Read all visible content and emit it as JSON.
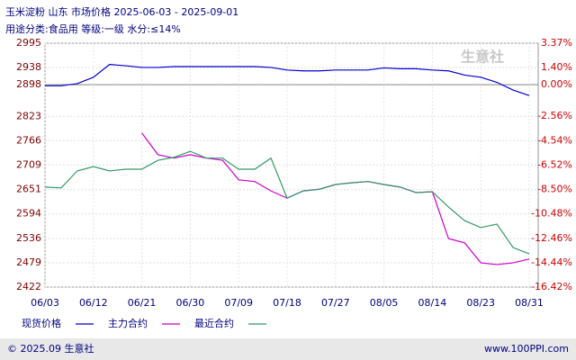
{
  "chart_data": {
    "type": "line",
    "title": "玉米淀粉  山东  市场价格  2025-06-03 - 2025-09-01",
    "subtitle": "用途分类:食品用  等级:一级  水分:≤14%",
    "watermark": "生意社",
    "categories": [
      "06/03",
      null,
      null,
      "06/12",
      null,
      null,
      "06/21",
      null,
      null,
      "06/30",
      null,
      null,
      "07/09",
      null,
      null,
      "07/18",
      null,
      null,
      "07/27",
      null,
      null,
      "08/05",
      null,
      null,
      "08/14",
      null,
      null,
      "08/23",
      null,
      null,
      "08/31"
    ],
    "series": [
      {
        "name": "现货价格",
        "color": "#0000cc",
        "values": [
          2895,
          2895,
          2900,
          2915,
          2945,
          2942,
          2938,
          2938,
          2940,
          2940,
          2940,
          2940,
          2940,
          2940,
          2938,
          2932,
          2930,
          2930,
          2932,
          2932,
          2932,
          2937,
          2935,
          2935,
          2932,
          2930,
          2920,
          2915,
          2903,
          2885,
          2872
        ]
      },
      {
        "name": "主力合约",
        "color": "#cc00cc",
        "values": [
          null,
          null,
          null,
          null,
          null,
          null,
          2784,
          2733,
          2725,
          2733,
          2725,
          2720,
          2674,
          2670,
          2648,
          2631,
          2648,
          2652,
          2663,
          2667,
          2670,
          2663,
          2657,
          2644,
          2646,
          2536,
          2526,
          2479,
          2475,
          2479,
          2488
        ]
      },
      {
        "name": "最近合约",
        "color": "#339966",
        "values": [
          2657,
          2655,
          2695,
          2705,
          2695,
          2699,
          2699,
          2720,
          2727,
          2741,
          2725,
          2725,
          2699,
          2699,
          2725,
          2631,
          2648,
          2652,
          2663,
          2667,
          2670,
          2663,
          2657,
          2644,
          2646,
          2610,
          2578,
          2562,
          2570,
          2515,
          2500
        ]
      }
    ],
    "ylim": [
      2422,
      2995
    ],
    "yticks": [
      2995,
      2938,
      2898,
      2823,
      2766,
      2709,
      2651,
      2594,
      2536,
      2479,
      2422
    ],
    "y2lim": [
      -16.42,
      3.37
    ],
    "y2ticks": [
      {
        "value": 3.37,
        "label": "3.37%"
      },
      {
        "value": 1.4,
        "label": "1.40%"
      },
      {
        "value": 0,
        "label": "0.00%"
      },
      {
        "value": -2.56,
        "label": "-2.56%"
      },
      {
        "value": -4.54,
        "label": "-4.54%"
      },
      {
        "value": -6.52,
        "label": "-6.52%"
      },
      {
        "value": -8.5,
        "label": "-8.50%"
      },
      {
        "value": -10.48,
        "label": "-10.48%"
      },
      {
        "value": -12.46,
        "label": "-12.46%"
      },
      {
        "value": -14.44,
        "label": "-14.44%"
      },
      {
        "value": -16.42,
        "label": "-16.42%"
      }
    ],
    "grid": true
  },
  "footer": {
    "copyright": "© 2025.09 生意社",
    "site": "www.100PPI.com"
  }
}
